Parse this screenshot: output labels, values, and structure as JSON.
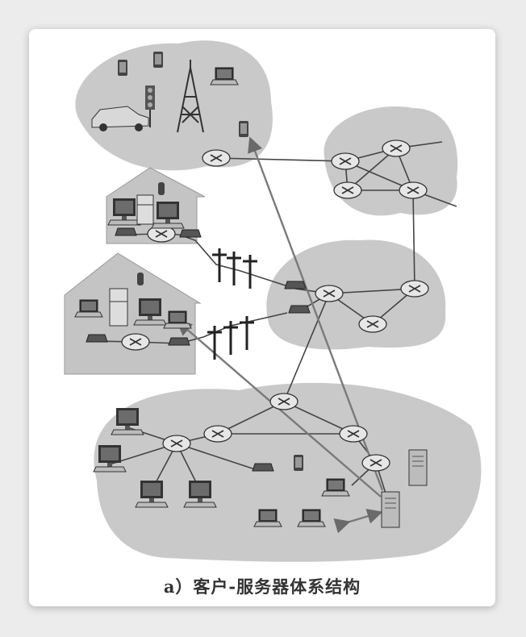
{
  "caption": "a）客户-服务器体系结构",
  "colors": {
    "cloud": "#c9c9c9",
    "house": "#c4c4c4",
    "line": "#444444",
    "arrow": "#7a7a7a",
    "router": "#e6e6e6",
    "device": "#555555",
    "card": "#ffffff",
    "page": "#ececec"
  },
  "icons": [
    "router-icon",
    "laptop-icon",
    "desktop-icon",
    "phone-icon",
    "car-icon",
    "traffic-light-icon",
    "cell-tower-icon",
    "refrigerator-icon",
    "thermometer-icon",
    "server-icon",
    "modem-icon",
    "utility-pole-icon"
  ]
}
